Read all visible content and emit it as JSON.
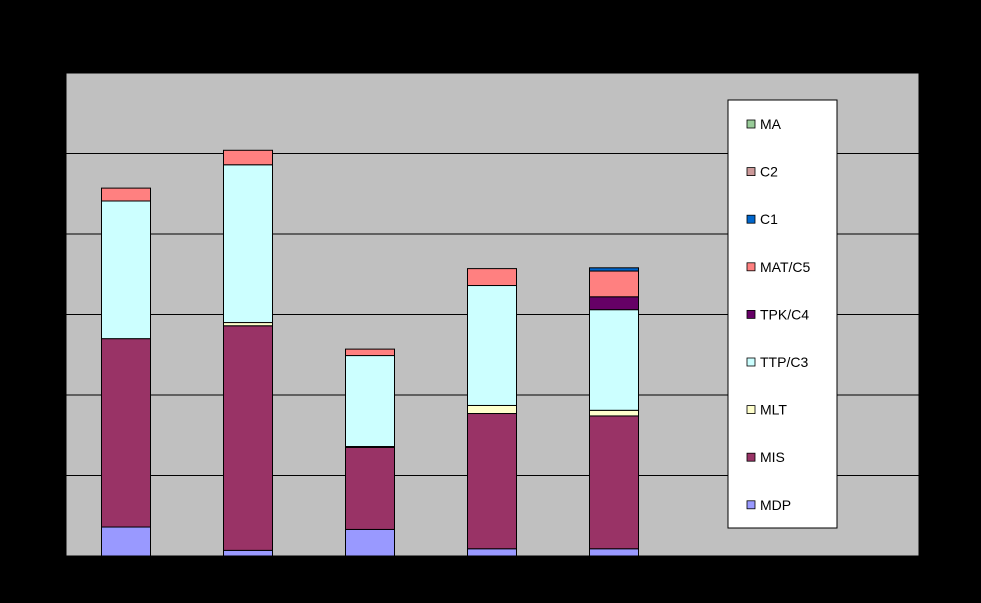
{
  "chart_data": {
    "type": "bar",
    "stacked": true,
    "title": "",
    "xlabel": "",
    "ylabel": "",
    "categories": [
      "",
      "",
      "",
      "",
      ""
    ],
    "ylim": [
      0,
      6
    ],
    "grid": true,
    "legend": "right",
    "series": [
      {
        "name": "MDP",
        "color": "#9999FF",
        "values": [
          0.36,
          0.07,
          0.33,
          0.09,
          0.09
        ]
      },
      {
        "name": "MIS",
        "color": "#993366",
        "values": [
          2.34,
          2.79,
          1.02,
          1.68,
          1.65
        ]
      },
      {
        "name": "MLT",
        "color": "#FFFFCC",
        "values": [
          0.0,
          0.04,
          0.01,
          0.1,
          0.07
        ]
      },
      {
        "name": "TTP/C3",
        "color": "#CCFFFF",
        "values": [
          1.71,
          1.96,
          1.13,
          1.49,
          1.25
        ]
      },
      {
        "name": "TPK/C4",
        "color": "#660066",
        "values": [
          0.0,
          0.0,
          0.0,
          0.0,
          0.16
        ]
      },
      {
        "name": "MAT/C5",
        "color": "#FF8080",
        "values": [
          0.16,
          0.18,
          0.08,
          0.21,
          0.32
        ]
      },
      {
        "name": "C1",
        "color": "#0066CC",
        "values": [
          0.0,
          0.0,
          0.0,
          0.0,
          0.04
        ]
      },
      {
        "name": "C2",
        "color": "#CC9999",
        "values": [
          0.0,
          0.0,
          0.0,
          0.0,
          0.0
        ]
      },
      {
        "name": "MA",
        "color": "#99CC99",
        "values": [
          0.0,
          0.0,
          0.0,
          0.0,
          0.0
        ]
      }
    ]
  }
}
